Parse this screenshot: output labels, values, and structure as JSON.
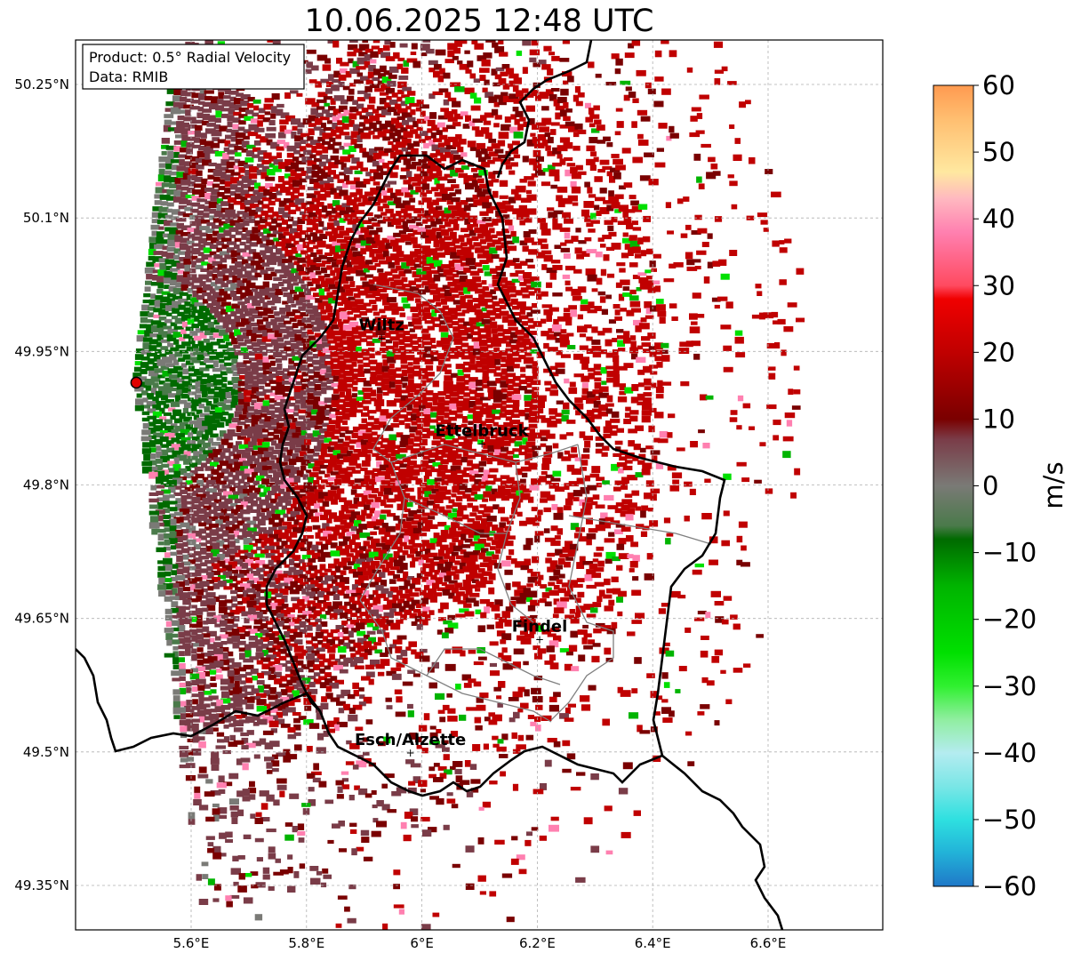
{
  "title": "10.06.2025 12:48 UTC",
  "info_box": {
    "product": "Product: 0.5° Radial Velocity",
    "data_source": "Data: RMIB"
  },
  "map": {
    "lon_range": [
      5.4,
      6.8
    ],
    "lat_range": [
      49.3,
      50.3
    ],
    "lat_ticks": [
      {
        "value": 50.25,
        "label": "50.25°N"
      },
      {
        "value": 50.1,
        "label": "50.1°N"
      },
      {
        "value": 49.95,
        "label": "49.95°N"
      },
      {
        "value": 49.8,
        "label": "49.8°N"
      },
      {
        "value": 49.65,
        "label": "49.65°N"
      },
      {
        "value": 49.5,
        "label": "49.5°N"
      },
      {
        "value": 49.35,
        "label": "49.35°N"
      }
    ],
    "lon_ticks": [
      {
        "value": 5.6,
        "label": "5.6°E"
      },
      {
        "value": 5.8,
        "label": "5.8°E"
      },
      {
        "value": 6.0,
        "label": "6°E"
      },
      {
        "value": 6.2,
        "label": "6.2°E"
      },
      {
        "value": 6.4,
        "label": "6.4°E"
      },
      {
        "value": 6.6,
        "label": "6.6°E"
      }
    ],
    "gridlines": true,
    "radar_site": {
      "lon": 5.505,
      "lat": 49.915
    },
    "cities": [
      {
        "name": "Wiltz",
        "lon": 5.93,
        "lat": 49.966
      },
      {
        "name": "Ettelbruck",
        "lon": 6.104,
        "lat": 49.847
      },
      {
        "name": "Findel",
        "lon": 6.204,
        "lat": 49.627
      },
      {
        "name": "Esch/Alzette",
        "lon": 5.98,
        "lat": 49.5
      }
    ]
  },
  "colorbar": {
    "label": "m/s",
    "min": -60,
    "max": 60,
    "ticks": [
      {
        "value": 60,
        "label": "60"
      },
      {
        "value": 50,
        "label": "50"
      },
      {
        "value": 40,
        "label": "40"
      },
      {
        "value": 30,
        "label": "30"
      },
      {
        "value": 20,
        "label": "20"
      },
      {
        "value": 10,
        "label": "10"
      },
      {
        "value": 0,
        "label": "0"
      },
      {
        "value": -10,
        "label": "−10"
      },
      {
        "value": -20,
        "label": "−20"
      },
      {
        "value": -30,
        "label": "−30"
      },
      {
        "value": -40,
        "label": "−40"
      },
      {
        "value": -50,
        "label": "−50"
      },
      {
        "value": -60,
        "label": "−60"
      }
    ],
    "stops": [
      {
        "value": -60,
        "color": "#1f78c8"
      },
      {
        "value": -55,
        "color": "#22b2d8"
      },
      {
        "value": -50,
        "color": "#2ee0e0"
      },
      {
        "value": -45,
        "color": "#7ae6e6"
      },
      {
        "value": -40,
        "color": "#b4ecf0"
      },
      {
        "value": -35,
        "color": "#90eea0"
      },
      {
        "value": -30,
        "color": "#30f030"
      },
      {
        "value": -25,
        "color": "#00e000"
      },
      {
        "value": -15,
        "color": "#00b400"
      },
      {
        "value": -8,
        "color": "#006a00"
      },
      {
        "value": -6,
        "color": "#4a7a4a"
      },
      {
        "value": 0,
        "color": "#7a7a76"
      },
      {
        "value": 7,
        "color": "#7a3c48"
      },
      {
        "value": 10,
        "color": "#7a0000"
      },
      {
        "value": 20,
        "color": "#c00000"
      },
      {
        "value": 28,
        "color": "#f00000"
      },
      {
        "value": 30,
        "color": "#ff4a60"
      },
      {
        "value": 38,
        "color": "#ff80b0"
      },
      {
        "value": 43,
        "color": "#ffb8c0"
      },
      {
        "value": 47,
        "color": "#ffe8a0"
      },
      {
        "value": 55,
        "color": "#ffbe70"
      },
      {
        "value": 60,
        "color": "#ff9a50"
      }
    ]
  },
  "colors": {
    "border_national": "#000000",
    "border_regional": "#808080",
    "radar_marker": "#e00000"
  }
}
